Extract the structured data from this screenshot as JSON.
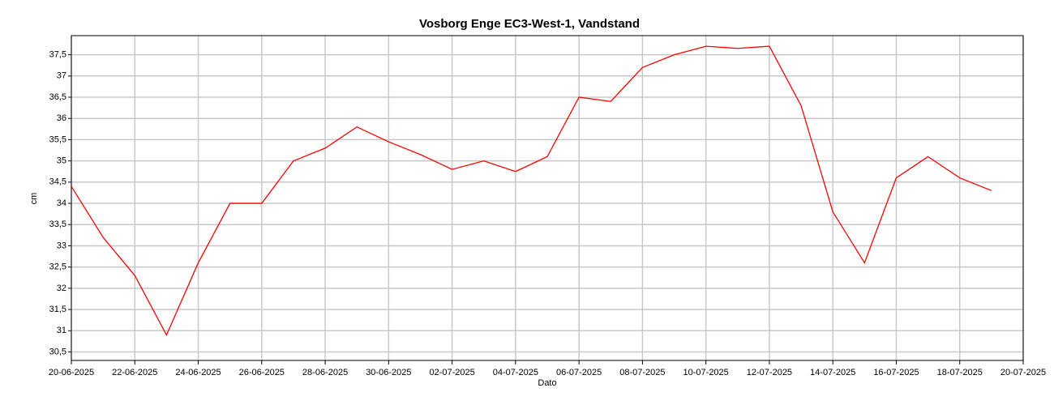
{
  "chart_data": {
    "type": "line",
    "title": "Vosborg Enge EC3-West-1, Vandstand",
    "x_label": "Dato",
    "y_label": "cm",
    "x": [
      "20-06-2025",
      "21-06-2025",
      "22-06-2025",
      "23-06-2025",
      "24-06-2025",
      "25-06-2025",
      "26-06-2025",
      "27-06-2025",
      "28-06-2025",
      "29-06-2025",
      "30-06-2025",
      "01-07-2025",
      "02-07-2025",
      "03-07-2025",
      "04-07-2025",
      "05-07-2025",
      "06-07-2025",
      "07-07-2025",
      "08-07-2025",
      "09-07-2025",
      "10-07-2025",
      "11-07-2025",
      "12-07-2025",
      "13-07-2025",
      "14-07-2025",
      "15-07-2025",
      "16-07-2025",
      "17-07-2025",
      "18-07-2025",
      "19-07-2025"
    ],
    "series": [
      {
        "name": "Vandstand",
        "color": "#ff0000",
        "values": [
          34.4,
          33.2,
          32.3,
          30.9,
          32.6,
          34.0,
          34.0,
          35.0,
          35.3,
          35.8,
          35.45,
          35.15,
          34.8,
          35.0,
          34.75,
          35.1,
          36.5,
          36.4,
          37.2,
          37.5,
          37.7,
          37.65,
          37.7,
          36.3,
          33.8,
          32.6,
          34.6,
          35.1,
          34.6,
          34.3
        ]
      }
    ],
    "xlim": [
      "20-06-2025",
      "20-07-2025"
    ],
    "xticks": [
      "20-06-2025",
      "22-06-2025",
      "24-06-2025",
      "26-06-2025",
      "28-06-2025",
      "30-06-2025",
      "02-07-2025",
      "04-07-2025",
      "06-07-2025",
      "08-07-2025",
      "10-07-2025",
      "12-07-2025",
      "14-07-2025",
      "16-07-2025",
      "18-07-2025",
      "20-07-2025"
    ],
    "ylim": [
      30.3,
      37.95
    ],
    "yticks": [
      {
        "value": 30.5,
        "label": "30,5"
      },
      31,
      {
        "value": 31.5,
        "label": "31,5"
      },
      32,
      {
        "value": 32.5,
        "label": "32,5"
      },
      33,
      {
        "value": 33.5,
        "label": "33,5"
      },
      34,
      {
        "value": 34.5,
        "label": "34,5"
      },
      35,
      {
        "value": 35.5,
        "label": "35,5"
      },
      36,
      {
        "value": 36.5,
        "label": "36,5"
      },
      37,
      {
        "value": 37.5,
        "label": "37,5"
      }
    ],
    "grid": true
  }
}
